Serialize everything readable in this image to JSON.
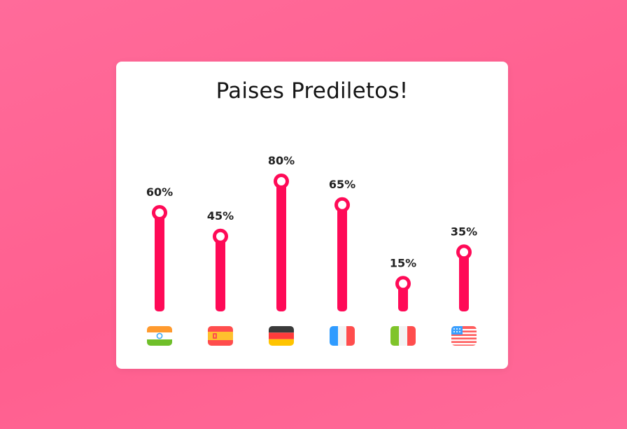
{
  "title": "Paises Prediletos!",
  "colors": {
    "accent": "#ff0a57",
    "background": "#ff6592",
    "card": "#ffffff",
    "text": "#151515"
  },
  "chart_data": {
    "type": "bar",
    "title": "Paises Prediletos!",
    "xlabel": "",
    "ylabel": "",
    "ylim": [
      0,
      100
    ],
    "grid": false,
    "categories": [
      "india-flag-icon",
      "spain-flag-icon",
      "germany-flag-icon",
      "france-flag-icon",
      "italy-flag-icon",
      "usa-flag-icon"
    ],
    "values": [
      60,
      45,
      80,
      65,
      15,
      35
    ],
    "data_labels": [
      "60%",
      "45%",
      "80%",
      "65%",
      "15%",
      "35%"
    ]
  }
}
